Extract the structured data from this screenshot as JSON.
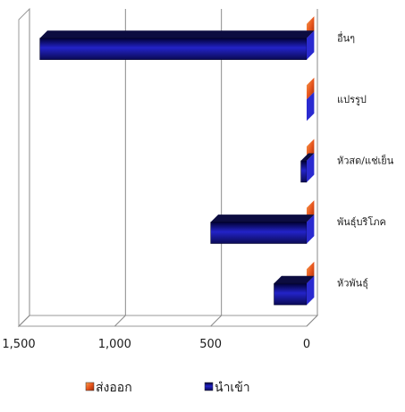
{
  "chart_data": {
    "type": "bar",
    "orientation": "horizontal",
    "categories": [
      "อื่นๆ",
      "แปรรูป",
      "หัวสด/แช่เย็น",
      "พันธุ์บริโภค",
      "หัวพันธุ์"
    ],
    "series": [
      {
        "name": "ส่งออก",
        "values": [
          0,
          0,
          0,
          0,
          0
        ],
        "color": "#e8561e"
      },
      {
        "name": "นำเข้า",
        "values": [
          1390,
          0,
          30,
          500,
          170
        ],
        "color": "#1a1a8c"
      }
    ],
    "xlim": [
      0,
      1500
    ],
    "x_direction": "reversed",
    "ticks": [
      {
        "value": 1500,
        "label": "1,500"
      },
      {
        "value": 1000,
        "label": "1,000"
      },
      {
        "value": 500,
        "label": "500"
      },
      {
        "value": 0,
        "label": "0"
      }
    ],
    "grid": true,
    "legend_position": "bottom",
    "style": "3d"
  }
}
